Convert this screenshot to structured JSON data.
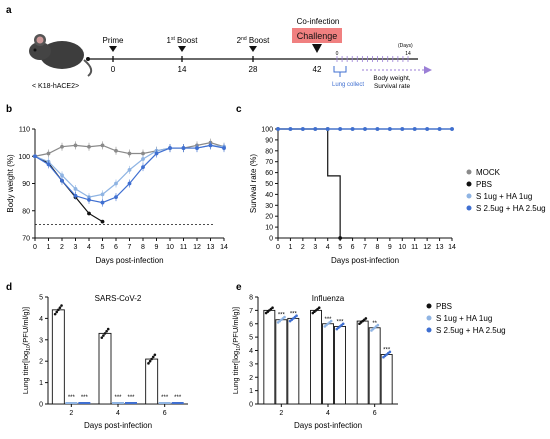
{
  "panels": {
    "a": "a",
    "b": "b",
    "c": "c",
    "d": "d",
    "e": "e"
  },
  "colors": {
    "mock": "#8a8a8a",
    "pbs": "#111111",
    "s1": "#8fb4e3",
    "s25": "#3f6fd1",
    "challenge_box": "#f08080",
    "arrow_purple": "#9b7fd6"
  },
  "timeline": {
    "mouse_label": "< K18-hACE2>",
    "events": [
      {
        "label": "Prime",
        "day": "0"
      },
      {
        "label": "1",
        "sup": "st",
        "suffix": " Boost",
        "day": "14"
      },
      {
        "label": "2",
        "sup": "nd",
        "suffix": " Boost",
        "day": "28"
      }
    ],
    "coinfection_label": "Co-infection",
    "challenge_label": "Challenge",
    "challenge_day": "42",
    "post_days": [
      "0",
      "14"
    ],
    "days_label": "(Days)",
    "lung_collect_label": "Lung collect",
    "bw_label": "Body weight,",
    "survival_label": "Survival rate"
  },
  "legend_main": [
    {
      "label": "MOCK",
      "color_key": "mock"
    },
    {
      "label": "PBS",
      "color_key": "pbs"
    },
    {
      "label": "S 1ug + HA 1ug",
      "color_key": "s1"
    },
    {
      "label": "S 2.5ug + HA 2.5ug",
      "color_key": "s25"
    }
  ],
  "legend_e": [
    {
      "label": "PBS",
      "color_key": "pbs"
    },
    {
      "label": "S 1ug + HA 1ug",
      "color_key": "s1"
    },
    {
      "label": "S 2.5ug + HA 2.5ug",
      "color_key": "s25"
    }
  ],
  "chart_data": [
    {
      "id": "b",
      "type": "line",
      "ylabel": "Body weight (%)",
      "xlabel": "Days post-infection",
      "xlim": [
        0,
        14
      ],
      "ylim": [
        70,
        110
      ],
      "yticks": [
        70,
        80,
        90,
        100,
        110
      ],
      "xticks": [
        0,
        1,
        2,
        3,
        4,
        5,
        6,
        7,
        8,
        9,
        10,
        11,
        12,
        13,
        14
      ],
      "threshold": 75,
      "series": [
        {
          "name": "MOCK",
          "color_key": "mock",
          "x": [
            0,
            1,
            2,
            3,
            4,
            5,
            6,
            7,
            8,
            9,
            10,
            11,
            12,
            13,
            14
          ],
          "y": [
            100,
            101,
            103.5,
            104,
            103.5,
            104,
            102,
            101,
            101,
            102,
            103,
            103,
            104,
            105,
            103.5
          ]
        },
        {
          "name": "PBS",
          "color_key": "pbs",
          "x": [
            0,
            1,
            2,
            3,
            4,
            5
          ],
          "y": [
            100,
            97.5,
            91,
            85,
            79,
            76
          ]
        },
        {
          "name": "S 1ug + HA 1ug",
          "color_key": "s1",
          "x": [
            0,
            1,
            2,
            3,
            4,
            5,
            6,
            7,
            8,
            9,
            10,
            11,
            12,
            13,
            14
          ],
          "y": [
            100,
            98,
            93,
            88,
            85,
            86,
            90,
            95,
            99,
            102,
            103,
            103,
            103,
            104,
            103.5
          ]
        },
        {
          "name": "S 2.5ug + HA 2.5ug",
          "color_key": "s25",
          "x": [
            0,
            1,
            2,
            3,
            4,
            5,
            6,
            7,
            8,
            9,
            10,
            11,
            12,
            13,
            14
          ],
          "y": [
            100,
            97,
            91,
            85.5,
            84,
            83,
            85,
            90,
            96,
            101,
            103,
            103,
            103,
            104,
            103
          ]
        }
      ]
    },
    {
      "id": "c",
      "type": "line",
      "ylabel": "Survival rate (%)",
      "xlabel": "Days post-infection",
      "xlim": [
        0,
        14
      ],
      "ylim": [
        0,
        100
      ],
      "yticks": [
        0,
        10,
        20,
        30,
        40,
        50,
        60,
        70,
        80,
        90,
        100
      ],
      "xticks": [
        0,
        1,
        2,
        3,
        4,
        5,
        6,
        7,
        8,
        9,
        10,
        11,
        12,
        13,
        14
      ],
      "series": [
        {
          "name": "MOCK",
          "color_key": "mock",
          "x": [
            0,
            1,
            2,
            3,
            4,
            5,
            6,
            7,
            8,
            9,
            10,
            11,
            12,
            13,
            14
          ],
          "y": [
            100,
            100,
            100,
            100,
            100,
            100,
            100,
            100,
            100,
            100,
            100,
            100,
            100,
            100,
            100
          ]
        },
        {
          "name": "PBS",
          "color_key": "pbs",
          "step": true,
          "x": [
            0,
            4,
            4,
            5,
            5,
            6
          ],
          "y": [
            100,
            100,
            57,
            57,
            0,
            0
          ]
        },
        {
          "name": "S 1ug + HA 1ug",
          "color_key": "s1",
          "x": [
            0,
            1,
            2,
            3,
            4,
            5,
            6,
            7,
            8,
            9,
            10,
            11,
            12,
            13,
            14
          ],
          "y": [
            100,
            100,
            100,
            100,
            100,
            100,
            100,
            100,
            100,
            100,
            100,
            100,
            100,
            100,
            100
          ]
        },
        {
          "name": "S 2.5ug + HA 2.5ug",
          "color_key": "s25",
          "x": [
            0,
            1,
            2,
            3,
            4,
            5,
            6,
            7,
            8,
            9,
            10,
            11,
            12,
            13,
            14
          ],
          "y": [
            100,
            100,
            100,
            100,
            100,
            100,
            100,
            100,
            100,
            100,
            100,
            100,
            100,
            100,
            100
          ]
        }
      ]
    },
    {
      "id": "d",
      "type": "bar",
      "title": "SARS-CoV-2",
      "ylabel": "Lung titer[log",
      "ylabel_sub": "10",
      "ylabel_end": "(PFU/ml/g)]",
      "xlabel": "Days post-infection",
      "ylim": [
        0,
        5
      ],
      "yticks": [
        0,
        1,
        2,
        3,
        4,
        5
      ],
      "categories": [
        "2",
        "4",
        "6"
      ],
      "significance": "***",
      "series": [
        {
          "name": "PBS",
          "color_key": "pbs",
          "values": [
            4.4,
            3.3,
            2.1
          ]
        },
        {
          "name": "S 1ug + HA 1ug",
          "color_key": "s1",
          "values": [
            0,
            0,
            0
          ]
        },
        {
          "name": "S 2.5ug + HA 2.5ug",
          "color_key": "s25",
          "values": [
            0,
            0,
            0
          ]
        }
      ]
    },
    {
      "id": "e",
      "type": "bar",
      "title": "Influenza",
      "ylabel": "Lung titer[log",
      "ylabel_sub": "10",
      "ylabel_end": "(PFU/ml/g)]",
      "xlabel": "Days post-infection",
      "ylim": [
        0,
        8
      ],
      "yticks": [
        0,
        1,
        2,
        3,
        4,
        5,
        6,
        7,
        8
      ],
      "categories": [
        "2",
        "4",
        "6"
      ],
      "series": [
        {
          "name": "PBS",
          "color_key": "pbs",
          "values": [
            7.0,
            7.0,
            6.2
          ]
        },
        {
          "name": "S 1ug + HA 1ug",
          "color_key": "s1",
          "values": [
            6.3,
            6.0,
            5.7
          ]
        },
        {
          "name": "S 2.5ug + HA 2.5ug",
          "color_key": "s25",
          "values": [
            6.4,
            5.8,
            3.7
          ]
        }
      ],
      "significance": [
        [
          "***",
          "***"
        ],
        [
          "***",
          "***"
        ],
        [
          "**",
          "***"
        ]
      ]
    }
  ]
}
